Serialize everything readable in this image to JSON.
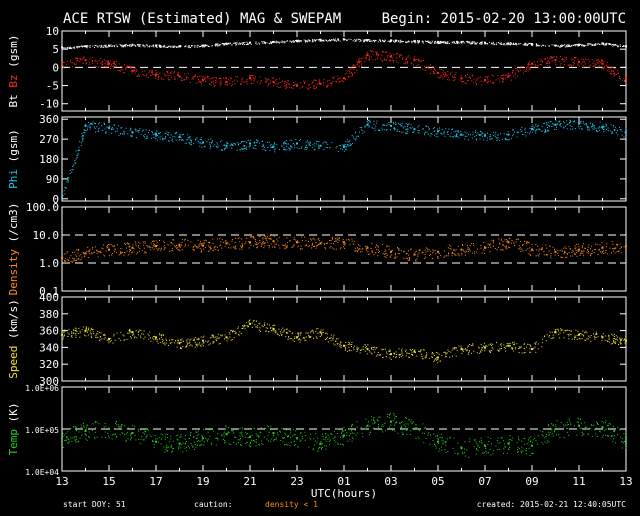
{
  "header": {
    "title": "ACE RTSW (Estimated) MAG & SWEPAM",
    "begin": "Begin: 2015-02-20 13:00:00UTC"
  },
  "footer": {
    "start_doy": "start DOY:  51",
    "caution": "caution:",
    "density_note": "density < 1",
    "created": "created: 2015-02-21 12:40:05UTC"
  },
  "colors": {
    "background": "#000000",
    "axis": "#ffffff",
    "bt": "#ffffff",
    "bz": "#ff2a1a",
    "phi": "#1ec8ec",
    "density": "#ff8c1a",
    "speed": "#f2e23a",
    "temp": "#22d022"
  },
  "chart_data": [
    {
      "type": "scatter",
      "panel": "mag",
      "ylabel_parts": [
        {
          "text": "Bt",
          "color": "#ffffff"
        },
        {
          "text": "Bz",
          "color": "#ff2a1a"
        },
        {
          "text": "(gsm)",
          "color": "#ffffff"
        }
      ],
      "ylim": [
        -12,
        10
      ],
      "yticks": [
        10,
        5,
        0,
        -5,
        -10
      ],
      "yticklabels": [
        "10",
        "5",
        "0",
        "-5",
        "-10"
      ],
      "scale": "linear",
      "dashed_lines": [
        0
      ],
      "series": [
        {
          "name": "Bt",
          "color": "#ffffff",
          "x": [
            0,
            1,
            2,
            3,
            4,
            5,
            6,
            7,
            8,
            9,
            10,
            11,
            12,
            13,
            14,
            15,
            16,
            17,
            18,
            19,
            20,
            21,
            22,
            23,
            24
          ],
          "y": [
            5.5,
            5.8,
            6.0,
            6.2,
            6.0,
            5.8,
            6.0,
            6.5,
            6.8,
            7.0,
            7.3,
            7.6,
            7.7,
            7.5,
            7.4,
            7.2,
            7.0,
            7.0,
            6.8,
            6.6,
            6.4,
            6.0,
            6.2,
            6.6,
            5.8
          ]
        },
        {
          "name": "Bz",
          "color": "#ff2a1a",
          "x": [
            0,
            1,
            2,
            3,
            4,
            5,
            6,
            7,
            8,
            9,
            10,
            11,
            12,
            13,
            14,
            15,
            16,
            17,
            18,
            19,
            20,
            21,
            22,
            23,
            24
          ],
          "y": [
            1.0,
            2.0,
            1.0,
            -1.0,
            -2.0,
            -2.5,
            -3.5,
            -4.0,
            -3.0,
            -4.0,
            -5.0,
            -4.5,
            -3.0,
            3.5,
            3.0,
            2.0,
            -1.5,
            -3.0,
            -3.5,
            -2.5,
            1.0,
            2.0,
            1.5,
            1.0,
            -3.0
          ]
        }
      ]
    },
    {
      "type": "scatter",
      "panel": "phi",
      "ylabel_parts": [
        {
          "text": "Phi",
          "color": "#1ec8ec"
        },
        {
          "text": "(gsm)",
          "color": "#ffffff"
        }
      ],
      "ylim": [
        -10,
        370
      ],
      "yticks": [
        360,
        270,
        180,
        90,
        0
      ],
      "yticklabels": [
        "360",
        "270",
        "180",
        "90",
        "0"
      ],
      "scale": "linear",
      "dashed_lines": [],
      "series": [
        {
          "name": "Phi",
          "color": "#1ec8ec",
          "x": [
            0,
            1,
            2,
            3,
            4,
            5,
            6,
            7,
            8,
            9,
            10,
            11,
            12,
            13,
            14,
            15,
            16,
            17,
            18,
            19,
            20,
            21,
            22,
            23,
            24
          ],
          "y": [
            10,
            330,
            320,
            300,
            290,
            280,
            255,
            240,
            250,
            235,
            250,
            240,
            235,
            335,
            330,
            315,
            305,
            290,
            285,
            290,
            315,
            335,
            340,
            325,
            300
          ]
        }
      ]
    },
    {
      "type": "scatter",
      "panel": "density",
      "ylabel_parts": [
        {
          "text": "Density",
          "color": "#ff8c1a"
        },
        {
          "text": "(/cm3)",
          "color": "#ffffff"
        }
      ],
      "ylim": [
        0.1,
        100
      ],
      "yticks": [
        100,
        10,
        1,
        0.1
      ],
      "yticklabels": [
        "100.0",
        "10.0",
        "1.0",
        "0.1"
      ],
      "scale": "log",
      "dashed_lines": [
        10,
        1
      ],
      "series": [
        {
          "name": "Density",
          "color": "#ff8c1a",
          "x": [
            0,
            1,
            2,
            3,
            4,
            5,
            6,
            7,
            8,
            9,
            10,
            11,
            12,
            13,
            14,
            15,
            16,
            17,
            18,
            19,
            20,
            21,
            22,
            23,
            24
          ],
          "y": [
            1.5,
            2.2,
            3.0,
            3.5,
            4.0,
            4.5,
            4.2,
            5.0,
            5.5,
            6.0,
            5.5,
            5.0,
            5.5,
            3.5,
            2.5,
            2.0,
            2.5,
            3.0,
            3.5,
            5.5,
            3.0,
            2.5,
            3.0,
            3.5,
            4.0
          ]
        }
      ]
    },
    {
      "type": "scatter",
      "panel": "speed",
      "ylabel_parts": [
        {
          "text": "Speed",
          "color": "#f2e23a"
        },
        {
          "text": "(km/s)",
          "color": "#ffffff"
        }
      ],
      "ylim": [
        300,
        400
      ],
      "yticks": [
        400,
        380,
        360,
        340,
        320,
        300
      ],
      "yticklabels": [
        "400",
        "380",
        "360",
        "340",
        "320",
        "300"
      ],
      "scale": "linear",
      "dashed_lines": [],
      "series": [
        {
          "name": "Speed",
          "color": "#f2e23a",
          "x": [
            0,
            1,
            2,
            3,
            4,
            5,
            6,
            7,
            8,
            9,
            10,
            11,
            12,
            13,
            14,
            15,
            16,
            17,
            18,
            19,
            20,
            21,
            22,
            23,
            24
          ],
          "y": [
            355,
            360,
            350,
            358,
            352,
            345,
            348,
            352,
            368,
            362,
            352,
            358,
            342,
            338,
            332,
            335,
            328,
            338,
            340,
            342,
            338,
            358,
            355,
            352,
            348
          ]
        }
      ]
    },
    {
      "type": "scatter",
      "panel": "temp",
      "ylabel_parts": [
        {
          "text": "Temp",
          "color": "#22d022"
        },
        {
          "text": "(K)",
          "color": "#ffffff"
        }
      ],
      "ylim": [
        10000,
        1000000
      ],
      "yticks": [
        1000000,
        100000,
        10000
      ],
      "yticklabels": [
        "1.0E+06",
        "1.0E+05",
        "1.0E+04"
      ],
      "scale": "log",
      "dashed_lines": [
        100000
      ],
      "series": [
        {
          "name": "Temp",
          "color": "#22d022",
          "x": [
            0,
            1,
            2,
            3,
            4,
            5,
            6,
            7,
            8,
            9,
            10,
            11,
            12,
            13,
            14,
            15,
            16,
            17,
            18,
            19,
            20,
            21,
            22,
            23,
            24
          ],
          "y": [
            60000,
            90000,
            100000,
            80000,
            50000,
            45000,
            60000,
            75000,
            65000,
            80000,
            60000,
            45000,
            70000,
            120000,
            150000,
            100000,
            50000,
            35000,
            40000,
            45000,
            40000,
            100000,
            120000,
            110000,
            50000
          ]
        }
      ]
    }
  ],
  "xaxis": {
    "label": "UTC(hours)",
    "ticklabels": [
      "13",
      "15",
      "17",
      "19",
      "21",
      "23",
      "01",
      "03",
      "05",
      "07",
      "09",
      "11",
      "13"
    ]
  }
}
